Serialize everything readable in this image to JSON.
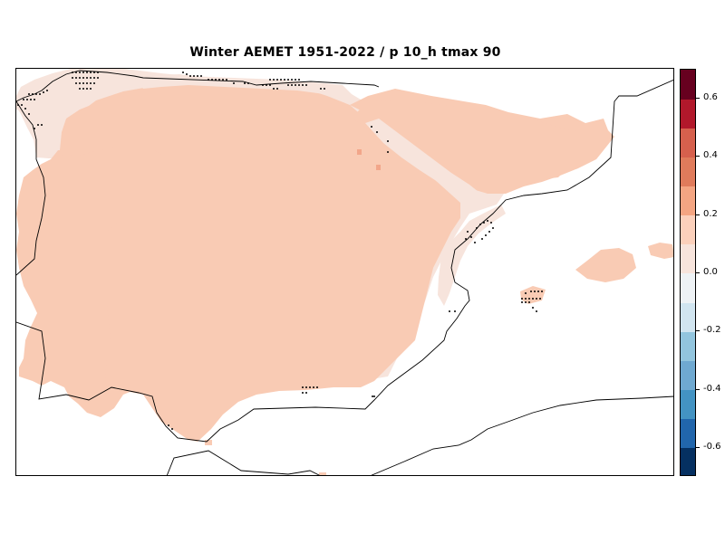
{
  "title": "Winter AEMET 1951-2022 / p 10_h tmax 90",
  "map": {
    "region": "Iberian Peninsula and Balearic Islands",
    "colors": {
      "main_field": "#f9cbb4",
      "light_field": "#f7e4dc",
      "hot_spot": "#f2a68a",
      "coastline": "#000000",
      "background": "#ffffff"
    }
  },
  "colorbar": {
    "min": -0.7,
    "max": 0.7,
    "step": 0.1,
    "colors": [
      "#053061",
      "#2166ac",
      "#4393c3",
      "#6fa9d1",
      "#92c5de",
      "#d1e5f0",
      "#eef2f5",
      "#f7e4dc",
      "#fbd0bb",
      "#f4a582",
      "#e07b5b",
      "#d6604d",
      "#b2182b",
      "#67001f"
    ],
    "ticks": [
      "-0.6",
      "-0.4",
      "-0.2",
      "0.0",
      "0.2",
      "0.4",
      "0.6"
    ]
  }
}
